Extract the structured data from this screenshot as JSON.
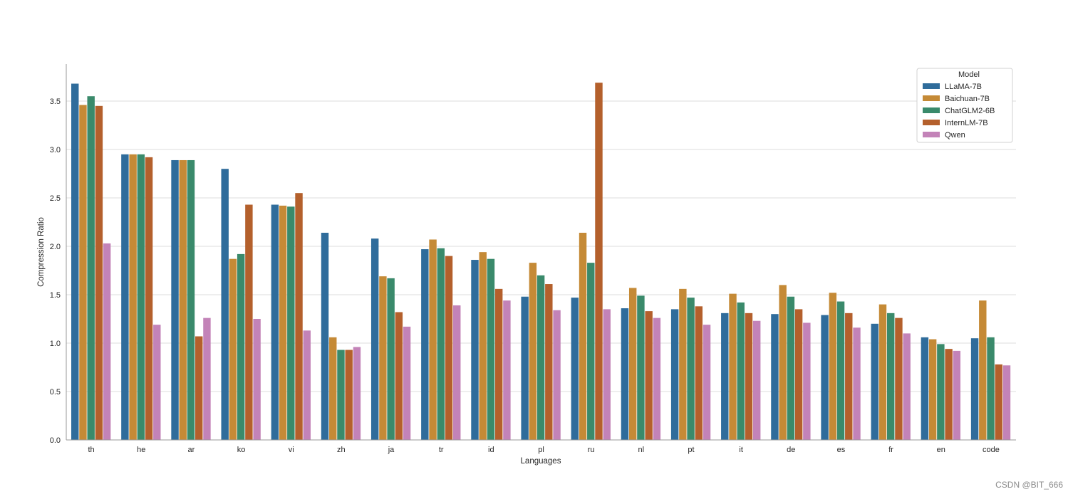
{
  "chart_data": {
    "type": "bar",
    "xlabel": "Languages",
    "ylabel": "Compression Ratio",
    "ylim": [
      0,
      3.9
    ],
    "yticks": [
      "0.0",
      "0.5",
      "1.0",
      "1.5",
      "2.0",
      "2.5",
      "3.0",
      "3.5"
    ],
    "grid": "horizontal",
    "legend_title": "Model",
    "legend_position": "top-right",
    "categories": [
      "th",
      "he",
      "ar",
      "ko",
      "vi",
      "zh",
      "ja",
      "tr",
      "id",
      "pl",
      "ru",
      "nl",
      "pt",
      "it",
      "de",
      "es",
      "fr",
      "en",
      "code"
    ],
    "series": [
      {
        "name": "LLaMA-7B",
        "color": "#2f6c9b",
        "values": [
          3.68,
          2.95,
          2.89,
          2.8,
          2.43,
          2.14,
          2.08,
          1.97,
          1.86,
          1.48,
          1.47,
          1.36,
          1.35,
          1.31,
          1.3,
          1.29,
          1.2,
          1.06,
          1.05
        ]
      },
      {
        "name": "Baichuan-7B",
        "color": "#c58a36",
        "values": [
          3.46,
          2.95,
          2.89,
          1.87,
          2.42,
          1.06,
          1.69,
          2.07,
          1.94,
          1.83,
          2.14,
          1.57,
          1.56,
          1.51,
          1.6,
          1.52,
          1.4,
          1.04,
          1.44
        ]
      },
      {
        "name": "ChatGLM2-6B",
        "color": "#3a8a6b",
        "values": [
          3.55,
          2.95,
          2.89,
          1.92,
          2.41,
          0.93,
          1.67,
          1.98,
          1.87,
          1.7,
          1.83,
          1.49,
          1.47,
          1.42,
          1.48,
          1.43,
          1.31,
          0.99,
          1.06
        ]
      },
      {
        "name": "InternLM-7B",
        "color": "#b4602c",
        "values": [
          3.45,
          2.92,
          1.07,
          2.43,
          2.55,
          0.93,
          1.32,
          1.9,
          1.56,
          1.61,
          3.69,
          1.33,
          1.38,
          1.31,
          1.35,
          1.31,
          1.26,
          0.94,
          0.78
        ]
      },
      {
        "name": "Qwen",
        "color": "#c383b8",
        "values": [
          2.03,
          1.19,
          1.26,
          1.25,
          1.13,
          0.96,
          1.17,
          1.39,
          1.44,
          1.34,
          1.35,
          1.26,
          1.19,
          1.23,
          1.21,
          1.16,
          1.1,
          0.92,
          0.77
        ]
      }
    ]
  },
  "watermark": "CSDN @BIT_666"
}
